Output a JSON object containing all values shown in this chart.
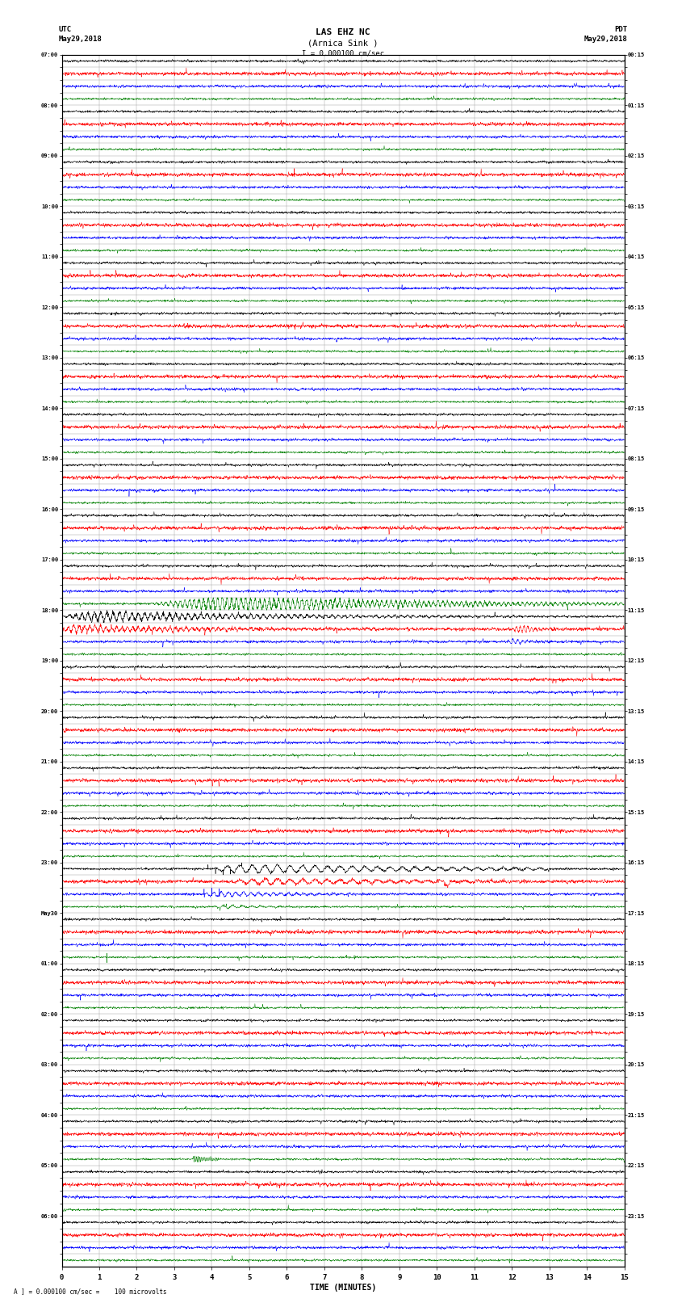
{
  "title_line1": "LAS EHZ NC",
  "title_line2": "(Arnica Sink )",
  "scale_label": "I = 0.000100 cm/sec",
  "left_label_top": "UTC",
  "left_label_date": "May29,2018",
  "right_label_top": "PDT",
  "right_label_date": "May29,2018",
  "bottom_label": "TIME (MINUTES)",
  "footer_label": "A ] = 0.000100 cm/sec =    100 microvolts",
  "utc_times": [
    "07:00",
    "",
    "",
    "",
    "08:00",
    "",
    "",
    "",
    "09:00",
    "",
    "",
    "",
    "10:00",
    "",
    "",
    "",
    "11:00",
    "",
    "",
    "",
    "12:00",
    "",
    "",
    "",
    "13:00",
    "",
    "",
    "",
    "14:00",
    "",
    "",
    "",
    "15:00",
    "",
    "",
    "",
    "16:00",
    "",
    "",
    "",
    "17:00",
    "",
    "",
    "",
    "18:00",
    "",
    "",
    "",
    "19:00",
    "",
    "",
    "",
    "20:00",
    "",
    "",
    "",
    "21:00",
    "",
    "",
    "",
    "22:00",
    "",
    "",
    "",
    "23:00",
    "",
    "",
    "",
    "May30",
    "",
    "",
    "",
    "01:00",
    "",
    "",
    "",
    "02:00",
    "",
    "",
    "",
    "03:00",
    "",
    "",
    "",
    "04:00",
    "",
    "",
    "",
    "05:00",
    "",
    "",
    "",
    "06:00",
    "",
    "",
    ""
  ],
  "pdt_times": [
    "00:15",
    "",
    "",
    "",
    "01:15",
    "",
    "",
    "",
    "02:15",
    "",
    "",
    "",
    "03:15",
    "",
    "",
    "",
    "04:15",
    "",
    "",
    "",
    "05:15",
    "",
    "",
    "",
    "06:15",
    "",
    "",
    "",
    "07:15",
    "",
    "",
    "",
    "08:15",
    "",
    "",
    "",
    "09:15",
    "",
    "",
    "",
    "10:15",
    "",
    "",
    "",
    "11:15",
    "",
    "",
    "",
    "12:15",
    "",
    "",
    "",
    "13:15",
    "",
    "",
    "",
    "14:15",
    "",
    "",
    "",
    "15:15",
    "",
    "",
    "",
    "16:15",
    "",
    "",
    "",
    "17:15",
    "",
    "",
    "",
    "18:15",
    "",
    "",
    "",
    "19:15",
    "",
    "",
    "",
    "20:15",
    "",
    "",
    "",
    "21:15",
    "",
    "",
    "",
    "22:15",
    "",
    "",
    "",
    "23:15",
    "",
    "",
    ""
  ],
  "n_rows": 96,
  "n_cols": 15,
  "bg_color": "#ffffff",
  "grid_color": "#999999",
  "trace_colors": [
    "black",
    "red",
    "blue",
    "green"
  ]
}
